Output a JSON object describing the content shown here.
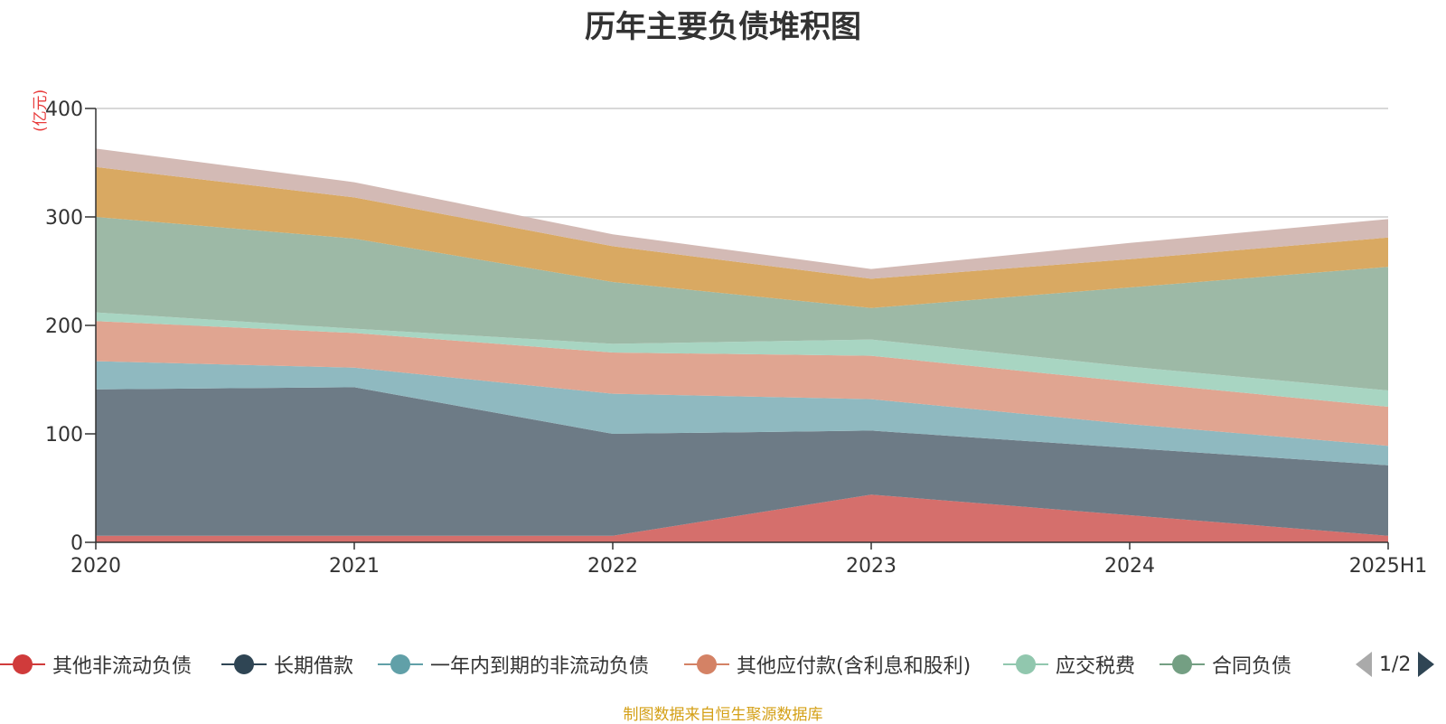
{
  "chart_data": {
    "type": "area",
    "stacked": true,
    "title": "历年主要负债堆积图",
    "unit_label": "(亿元)",
    "categories": [
      "2020",
      "2021",
      "2022",
      "2023",
      "2024",
      "2025H1"
    ],
    "ylim": [
      0,
      400
    ],
    "yticks": [
      0,
      100,
      200,
      300,
      400
    ],
    "grid": true,
    "series": [
      {
        "name": "其他非流动负债",
        "color": "#d56f6c",
        "values": [
          6,
          6,
          6,
          44,
          25,
          6
        ]
      },
      {
        "name": "长期借款",
        "color": "#6d7b86",
        "values": [
          135,
          137,
          94,
          59,
          62,
          65
        ]
      },
      {
        "name": "一年内到期的非流动负债",
        "color": "#8fb9c0",
        "values": [
          26,
          18,
          37,
          29,
          22,
          18
        ]
      },
      {
        "name": "其他应付款(含利息和股利)",
        "color": "#e0a591",
        "values": [
          37,
          32,
          38,
          40,
          39,
          36
        ]
      },
      {
        "name": "应交税费",
        "color": "#a8d5c2",
        "values": [
          8,
          4,
          8,
          15,
          14,
          15
        ]
      },
      {
        "name": "合同负债",
        "color": "#9db9a6",
        "values": [
          88,
          83,
          57,
          29,
          73,
          114
        ]
      },
      {
        "name": "",
        "color": "#d9a962",
        "values": [
          46,
          38,
          33,
          27,
          26,
          27
        ]
      },
      {
        "name": "",
        "color": "#d3bab5",
        "values": [
          17,
          14,
          11,
          9,
          15,
          17
        ]
      }
    ]
  },
  "legend": {
    "items": [
      {
        "label": "其他非流动负债",
        "color": "#d03b3b"
      },
      {
        "label": "长期借款",
        "color": "#2f4554"
      },
      {
        "label": "一年内到期的非流动负债",
        "color": "#61a0a8"
      },
      {
        "label": "其他应付款(含利息和股利)",
        "color": "#d48265"
      },
      {
        "label": "应交税费",
        "color": "#91c7ae"
      },
      {
        "label": "合同负债",
        "color": "#749f83"
      }
    ],
    "page_indicator": "1/2"
  },
  "source_note": "制图数据来自恒生聚源数据库"
}
